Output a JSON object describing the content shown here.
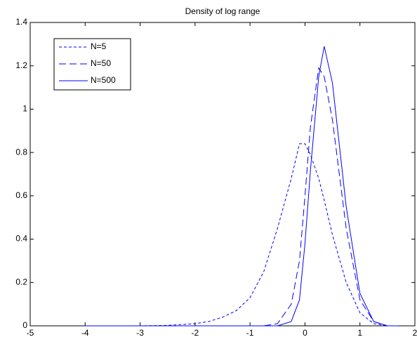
{
  "chart_data": {
    "type": "line",
    "title": "Density of log range",
    "x": [
      -4,
      -3.5,
      -3,
      -2.5,
      -2,
      -1.75,
      -1.5,
      -1.25,
      -1,
      -0.75,
      -0.5,
      -0.25,
      -0.1,
      0,
      0.1,
      0.25,
      0.35,
      0.5,
      0.75,
      1,
      1.25,
      1.5,
      1.7
    ],
    "series": [
      {
        "name": "N=5",
        "color": "#0000ff",
        "line_style": "dashed",
        "values": [
          0,
          0,
          0,
          0.002,
          0.01,
          0.02,
          0.04,
          0.07,
          0.13,
          0.25,
          0.45,
          0.68,
          0.84,
          0.84,
          0.79,
          0.68,
          0.58,
          0.42,
          0.2,
          0.06,
          0.01,
          0,
          0
        ]
      },
      {
        "name": "N=50",
        "color": "#0000ff",
        "line_style": "long-dashed",
        "values": [
          0,
          0,
          0,
          0,
          0,
          0,
          0,
          0,
          0,
          0,
          0.01,
          0.1,
          0.3,
          0.6,
          0.92,
          1.19,
          1.15,
          0.95,
          0.45,
          0.12,
          0.02,
          0,
          0
        ]
      },
      {
        "name": "N=500",
        "color": "#0000ff",
        "line_style": "solid",
        "values": [
          0,
          0,
          0,
          0,
          0,
          0,
          0,
          0,
          0,
          0,
          0,
          0.02,
          0.12,
          0.38,
          0.72,
          1.15,
          1.29,
          1.12,
          0.55,
          0.15,
          0.02,
          0,
          0
        ]
      }
    ],
    "xlim": [
      -5,
      2
    ],
    "xticks": [
      -5,
      -4,
      -3,
      -2,
      -1,
      0,
      1,
      2
    ],
    "ylim": [
      0,
      1.4
    ],
    "yticks": [
      0,
      0.2,
      0.4,
      0.6,
      0.8,
      1,
      1.2,
      1.4
    ],
    "grid": false,
    "legend_position": "upper-left"
  }
}
